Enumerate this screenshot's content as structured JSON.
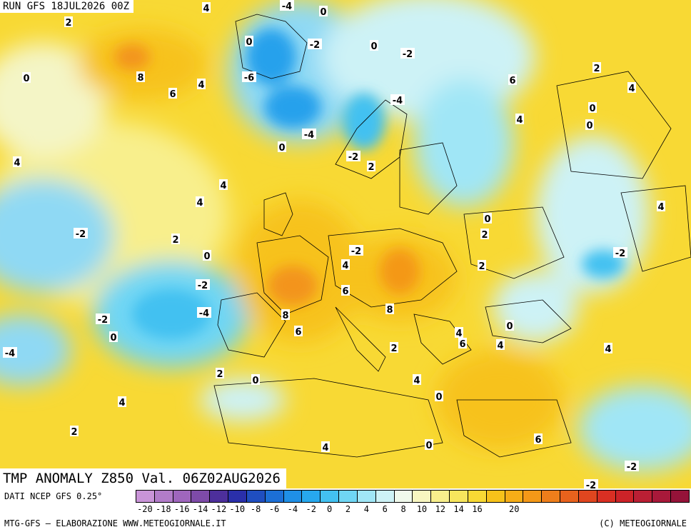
{
  "header": {
    "run_label": "RUN GFS 18JUL2026 00Z"
  },
  "map": {
    "title": "TMP ANOMALY Z850 Val. 06Z02AUG2026",
    "contour_labels": [
      "4",
      "0",
      "2",
      "-4",
      "0",
      "0",
      "-2",
      "0",
      "-2",
      "8",
      "6",
      "4",
      "-6",
      "6",
      "2",
      "4",
      "4",
      "0",
      "-4",
      "0",
      "0",
      "-4",
      "-2",
      "2",
      "4",
      "4",
      "4",
      "0",
      "4",
      "-2",
      "2",
      "2",
      "0",
      "-2",
      "-2",
      "-4",
      "4",
      "-2",
      "0",
      "-4",
      "-2",
      "2",
      "8",
      "6",
      "8",
      "6",
      "4",
      "0",
      "6",
      "2",
      "4",
      "0",
      "4",
      "2",
      "4",
      "4",
      "0",
      "2",
      "6",
      "4",
      "0",
      "-2",
      "-2"
    ],
    "colors": {
      "cold_core": "#27a1ec",
      "cold": "#8fd9f4",
      "neutral": "#f4f5c6",
      "warm": "#f7c21a",
      "hot": "#f3941c",
      "border_lines": "#000000",
      "isolines": "#ffffff"
    }
  },
  "legend": {
    "data_source": "DATI NCEP GFS 0.25°",
    "tick_labels": [
      "-20",
      "-18",
      "-16",
      "-14",
      "-12",
      "-10",
      "-8",
      "-6",
      "-4",
      "-2",
      "0",
      "2",
      "4",
      "6",
      "8",
      "10",
      "12",
      "14",
      "16",
      "20"
    ],
    "colors": [
      "#c994d8",
      "#b27cc9",
      "#9f66bd",
      "#7e4ba8",
      "#4d2f9b",
      "#2a2faa",
      "#1f4ec0",
      "#1c6fd6",
      "#1f8fe6",
      "#27a8ee",
      "#43c1f1",
      "#6fd6f4",
      "#a0e6f6",
      "#cdf2f6",
      "#f0f9ec",
      "#f8f6c0",
      "#f8ef8c",
      "#f7e55d",
      "#f8d934",
      "#f7c21a",
      "#f6ad17",
      "#f49818",
      "#ee7e1b",
      "#e8621d",
      "#e0461f",
      "#d92f23",
      "#cc2328",
      "#ba1f34",
      "#a8193a",
      "#951339"
    ]
  },
  "footer": {
    "left": "MTG-GFS – ELABORAZIONE WWW.METEOGIORNALE.IT",
    "right": "(C) METEOGIORNALE"
  }
}
